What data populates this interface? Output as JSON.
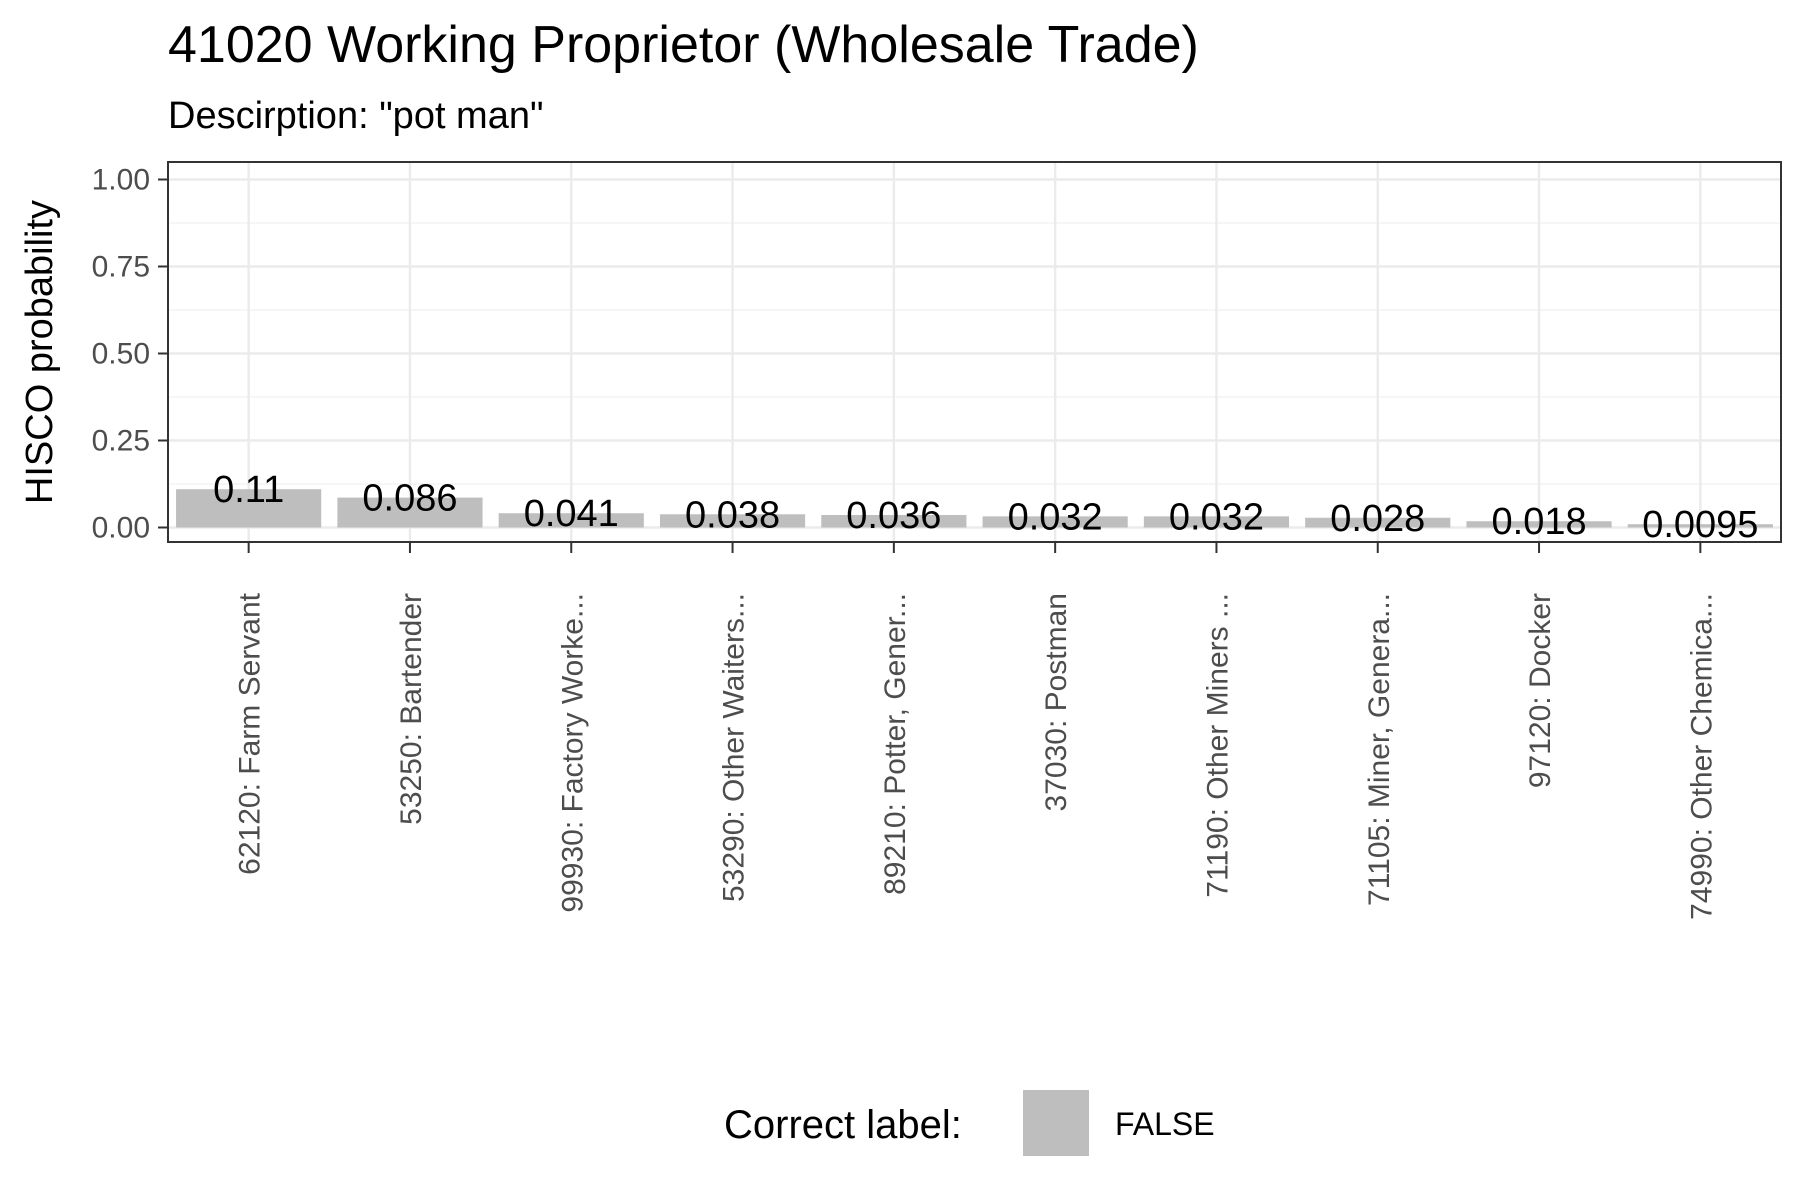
{
  "chart_data": {
    "type": "bar",
    "title": "41020 Working Proprietor (Wholesale Trade)",
    "subtitle": "Descirption: \"pot man\"",
    "xlabel": "",
    "ylabel": "HISCO probability",
    "ylim": [
      0,
      1.05
    ],
    "yticks": [
      0,
      0.25,
      0.5,
      0.75,
      1.0
    ],
    "ytick_labels": [
      "0.00",
      "0.25",
      "0.50",
      "0.75",
      "1.00"
    ],
    "grid": true,
    "categories": [
      "62120: Farm Servant",
      "53250: Bartender",
      "99930: Factory Worke...",
      "53290: Other Waiters...",
      "89210: Potter, Gener...",
      "37030: Postman",
      "71190: Other Miners ...",
      "71105: Miner, Genera...",
      "97120: Docker",
      "74990: Other Chemica..."
    ],
    "values": [
      0.11,
      0.086,
      0.041,
      0.038,
      0.036,
      0.032,
      0.032,
      0.028,
      0.018,
      0.0095
    ],
    "value_labels": [
      "0.11",
      "0.086",
      "0.041",
      "0.038",
      "0.036",
      "0.032",
      "0.032",
      "0.028",
      "0.018",
      "0.0095"
    ],
    "bar_color": "#bebebe",
    "legend": {
      "position": "bottom",
      "title": "Correct label:",
      "entries": [
        {
          "label": "FALSE",
          "color": "#bebebe"
        }
      ]
    }
  }
}
